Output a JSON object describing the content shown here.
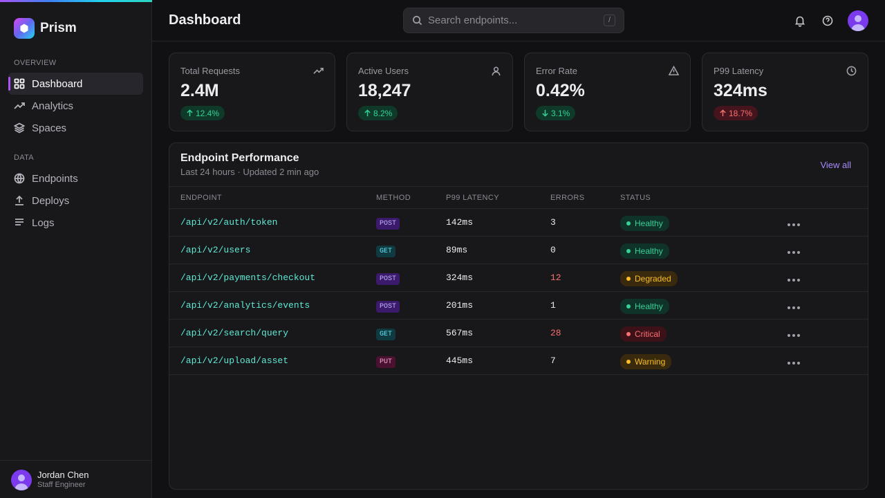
{
  "sidebar": {
    "brand": "Prism",
    "sections": [
      {
        "label": "OVERVIEW",
        "items": [
          "Dashboard",
          "Analytics",
          "Spaces"
        ]
      },
      {
        "label": "DATA",
        "items": [
          "Endpoints",
          "Deploys",
          "Logs"
        ]
      }
    ],
    "user": {
      "name": "Jordan Chen",
      "role": "Staff Engineer"
    }
  },
  "header": {
    "title": "Dashboard",
    "search_placeholder": "Search endpoints...",
    "search_shortcut": "/"
  },
  "stats": [
    {
      "label": "Total Requests",
      "value": "2.4M",
      "change": "12.4%",
      "trend": "up",
      "tone": "good"
    },
    {
      "label": "Active Users",
      "value": "18,247",
      "change": "8.2%",
      "trend": "up",
      "tone": "good"
    },
    {
      "label": "Error Rate",
      "value": "0.42%",
      "change": "3.1%",
      "trend": "down",
      "tone": "good"
    },
    {
      "label": "P99 Latency",
      "value": "324ms",
      "change": "18.7%",
      "trend": "up",
      "tone": "bad"
    }
  ],
  "table": {
    "title": "Endpoint Performance",
    "subtitle": "Last 24 hours · Updated 2 min ago",
    "action": "View all",
    "columns": [
      "ENDPOINT",
      "METHOD",
      "P99 LATENCY",
      "ERRORS",
      "STATUS"
    ],
    "rows": [
      {
        "endpoint": "/api/v2/auth/token",
        "method": "POST",
        "method_color": "purple",
        "latency": "142ms",
        "errors": 3,
        "errors_alert": false,
        "status": "Healthy",
        "status_tone": "ok"
      },
      {
        "endpoint": "/api/v2/users",
        "method": "GET",
        "method_color": "cyan",
        "latency": "89ms",
        "errors": 0,
        "errors_alert": false,
        "status": "Healthy",
        "status_tone": "ok"
      },
      {
        "endpoint": "/api/v2/payments/checkout",
        "method": "POST",
        "method_color": "purple",
        "latency": "324ms",
        "errors": 12,
        "errors_alert": true,
        "status": "Degraded",
        "status_tone": "warn"
      },
      {
        "endpoint": "/api/v2/analytics/events",
        "method": "POST",
        "method_color": "purple",
        "latency": "201ms",
        "errors": 1,
        "errors_alert": false,
        "status": "Healthy",
        "status_tone": "ok"
      },
      {
        "endpoint": "/api/v2/search/query",
        "method": "GET",
        "method_color": "cyan",
        "latency": "567ms",
        "errors": 28,
        "errors_alert": true,
        "status": "Critical",
        "status_tone": "crit"
      },
      {
        "endpoint": "/api/v2/upload/asset",
        "method": "PUT",
        "method_color": "pink",
        "latency": "445ms",
        "errors": 7,
        "errors_alert": false,
        "status": "Warning",
        "status_tone": "warn"
      }
    ]
  }
}
